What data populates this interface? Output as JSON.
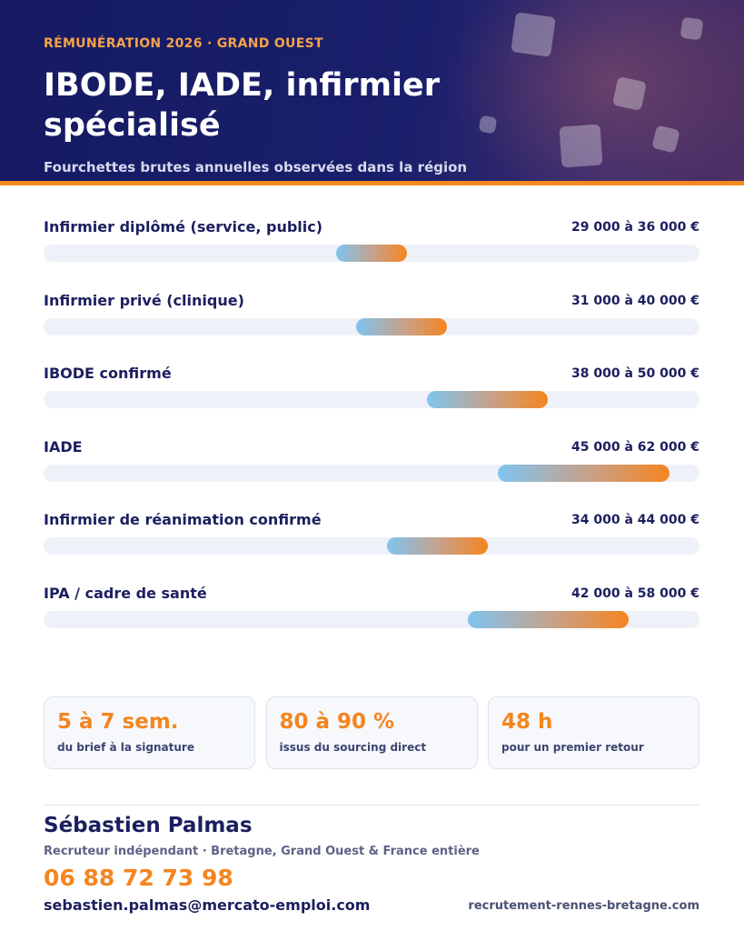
{
  "header": {
    "eyebrow": "RÉMUNÉRATION 2026  ·  GRAND OUEST",
    "title": "IBODE, IADE, infirmier spécialisé",
    "subtitle": "Fourchettes brutes annuelles observées dans la région",
    "colors": {
      "background": "#151a63",
      "accent": "#f58a1f",
      "eyebrow": "#f5a24a"
    }
  },
  "chart_data": {
    "type": "bar",
    "categories": [
      "Infirmier diplômé (service, public)",
      "Infirmier privé (clinique)",
      "IBODE confirmé",
      "IADE",
      "Infirmier de réanimation confirmé",
      "IPA / cadre de santé"
    ],
    "ranges": [
      {
        "min": 29000,
        "max": 36000,
        "label": "29 000 à 36 000 €"
      },
      {
        "min": 31000,
        "max": 40000,
        "label": "31 000 à 40 000 €"
      },
      {
        "min": 38000,
        "max": 50000,
        "label": "38 000 à 50 000 €"
      },
      {
        "min": 45000,
        "max": 62000,
        "label": "45 000 à 62 000 €"
      },
      {
        "min": 34000,
        "max": 44000,
        "label": "34 000 à 44 000 €"
      },
      {
        "min": 42000,
        "max": 58000,
        "label": "42 000 à 58 000 €"
      }
    ],
    "xlim": [
      0,
      65000
    ],
    "grid": false,
    "colors": {
      "track": "#eef1f8",
      "start": "#7fc4f0",
      "end": "#f5851f"
    }
  },
  "stats": [
    {
      "value": "5 à 7 sem.",
      "caption": "du brief à la signature"
    },
    {
      "value": "80 à 90 %",
      "caption": "issus du sourcing direct"
    },
    {
      "value": "48 h",
      "caption": "pour un premier retour"
    }
  ],
  "contact": {
    "name": "Sébastien Palmas",
    "role": "Recruteur indépendant · Bretagne, Grand Ouest & France entière",
    "phone": "06 88 72 73 98",
    "email": "sebastien.palmas@mercato-emploi.com",
    "website": "recrutement-rennes-bretagne.com"
  }
}
